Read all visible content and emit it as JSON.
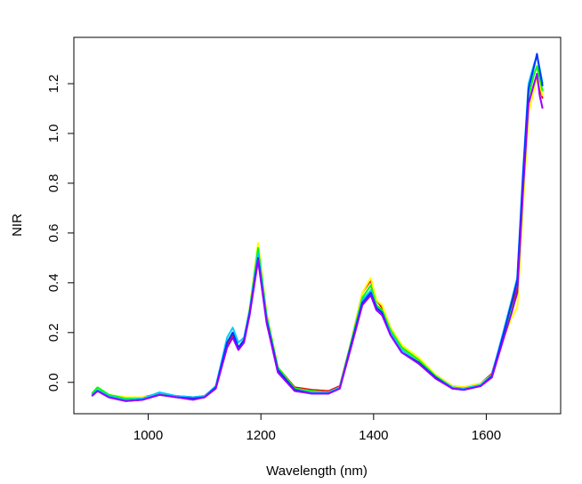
{
  "chart_data": {
    "type": "line",
    "xlabel": "Wavelength (nm)",
    "ylabel": "NIR",
    "x": [
      900,
      910,
      930,
      960,
      990,
      1020,
      1050,
      1080,
      1100,
      1120,
      1140,
      1150,
      1160,
      1170,
      1180,
      1195,
      1210,
      1230,
      1260,
      1290,
      1320,
      1340,
      1360,
      1380,
      1395,
      1405,
      1415,
      1430,
      1450,
      1480,
      1510,
      1540,
      1560,
      1590,
      1610,
      1630,
      1645,
      1655,
      1665,
      1675,
      1685,
      1690,
      1695,
      1700
    ],
    "series": [
      {
        "color": "#ff0000",
        "values": [
          -0.05,
          -0.03,
          -0.055,
          -0.065,
          -0.06,
          -0.045,
          -0.055,
          -0.06,
          -0.055,
          -0.015,
          0.15,
          0.19,
          0.14,
          0.17,
          0.29,
          0.53,
          0.27,
          0.06,
          -0.02,
          -0.03,
          -0.035,
          -0.015,
          0.16,
          0.36,
          0.41,
          0.33,
          0.3,
          0.22,
          0.14,
          0.09,
          0.03,
          -0.015,
          -0.02,
          -0.005,
          0.035,
          0.19,
          0.3,
          0.38,
          0.78,
          1.12,
          1.2,
          1.23,
          1.18,
          1.14
        ]
      },
      {
        "color": "#ffff00",
        "values": [
          -0.045,
          -0.025,
          -0.05,
          -0.06,
          -0.06,
          -0.05,
          -0.06,
          -0.065,
          -0.06,
          -0.02,
          0.14,
          0.18,
          0.13,
          0.17,
          0.3,
          0.56,
          0.28,
          0.06,
          -0.025,
          -0.035,
          -0.04,
          -0.02,
          0.16,
          0.36,
          0.42,
          0.33,
          0.31,
          0.22,
          0.15,
          0.1,
          0.03,
          -0.015,
          -0.02,
          -0.005,
          0.03,
          0.17,
          0.26,
          0.3,
          0.7,
          1.08,
          1.18,
          1.22,
          1.2,
          1.15
        ]
      },
      {
        "color": "#00ff00",
        "values": [
          -0.045,
          -0.02,
          -0.05,
          -0.065,
          -0.065,
          -0.045,
          -0.06,
          -0.065,
          -0.06,
          -0.02,
          0.16,
          0.2,
          0.14,
          0.17,
          0.29,
          0.54,
          0.27,
          0.06,
          -0.025,
          -0.035,
          -0.04,
          -0.02,
          0.16,
          0.34,
          0.39,
          0.31,
          0.29,
          0.21,
          0.14,
          0.09,
          0.025,
          -0.02,
          -0.025,
          -0.01,
          0.03,
          0.18,
          0.29,
          0.36,
          0.78,
          1.15,
          1.24,
          1.27,
          1.22,
          1.17
        ]
      },
      {
        "color": "#00ccff",
        "values": [
          -0.05,
          -0.03,
          -0.055,
          -0.07,
          -0.065,
          -0.04,
          -0.055,
          -0.06,
          -0.055,
          -0.015,
          0.18,
          0.22,
          0.16,
          0.18,
          0.29,
          0.52,
          0.26,
          0.05,
          -0.03,
          -0.04,
          -0.04,
          -0.02,
          0.15,
          0.33,
          0.37,
          0.3,
          0.28,
          0.2,
          0.13,
          0.08,
          0.02,
          -0.02,
          -0.025,
          -0.01,
          0.03,
          0.2,
          0.33,
          0.42,
          0.84,
          1.2,
          1.28,
          1.31,
          1.26,
          1.2
        ]
      },
      {
        "color": "#0033ff",
        "values": [
          -0.055,
          -0.035,
          -0.06,
          -0.075,
          -0.07,
          -0.05,
          -0.06,
          -0.065,
          -0.06,
          -0.02,
          0.16,
          0.2,
          0.14,
          0.17,
          0.28,
          0.5,
          0.25,
          0.05,
          -0.03,
          -0.045,
          -0.045,
          -0.025,
          0.15,
          0.32,
          0.36,
          0.3,
          0.28,
          0.19,
          0.12,
          0.08,
          0.02,
          -0.025,
          -0.03,
          -0.015,
          0.025,
          0.19,
          0.32,
          0.41,
          0.82,
          1.18,
          1.27,
          1.32,
          1.25,
          1.19
        ]
      },
      {
        "color": "#9900ff",
        "values": [
          -0.055,
          -0.035,
          -0.06,
          -0.075,
          -0.07,
          -0.05,
          -0.06,
          -0.07,
          -0.06,
          -0.025,
          0.14,
          0.18,
          0.13,
          0.16,
          0.27,
          0.49,
          0.24,
          0.04,
          -0.035,
          -0.045,
          -0.045,
          -0.025,
          0.14,
          0.31,
          0.35,
          0.29,
          0.27,
          0.19,
          0.12,
          0.075,
          0.015,
          -0.025,
          -0.03,
          -0.015,
          0.02,
          0.17,
          0.28,
          0.36,
          0.76,
          1.12,
          1.2,
          1.24,
          1.15,
          1.1
        ]
      }
    ],
    "xlim": [
      868,
      1732
    ],
    "ylim": [
      -0.126,
      1.386
    ],
    "xticks": [
      1000,
      1200,
      1400,
      1600
    ],
    "yticks": [
      {
        "value": 0,
        "label": "0.0"
      },
      0.2,
      0.4,
      0.6,
      0.8,
      {
        "value": 1,
        "label": "1.0"
      },
      1.2
    ],
    "grid": false
  }
}
